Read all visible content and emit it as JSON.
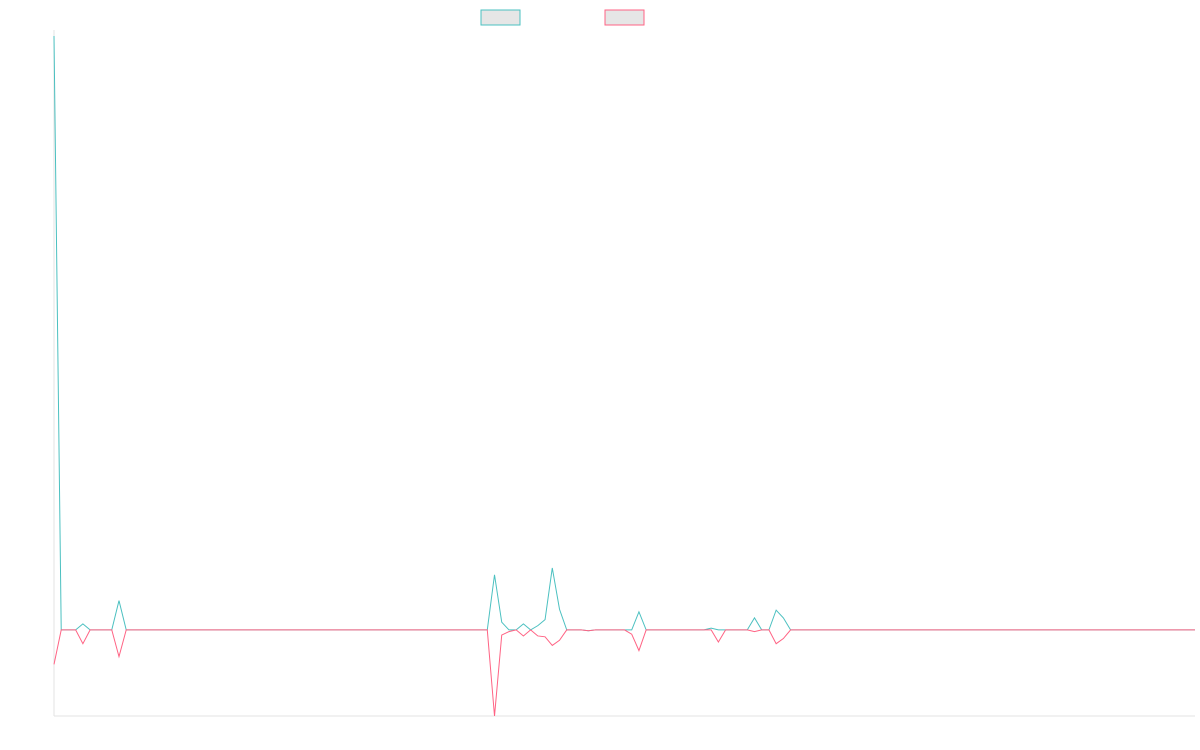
{
  "chart_data": {
    "type": "line",
    "title": "",
    "xlabel": "",
    "ylabel": "",
    "grid": false,
    "legend_position": "top-center",
    "x": [
      0,
      1,
      2,
      3,
      4,
      5,
      6,
      7,
      8,
      9,
      10,
      11,
      12,
      13,
      14,
      15,
      16,
      17,
      18,
      19,
      20,
      21,
      22,
      23,
      24,
      25,
      26,
      27,
      28,
      29,
      30,
      31,
      32,
      33,
      34,
      35,
      36,
      37,
      38,
      39,
      40,
      41,
      42,
      43,
      44,
      45,
      46,
      47,
      48,
      49,
      50,
      51,
      52,
      53,
      54,
      55,
      56,
      57,
      58,
      59,
      60,
      61,
      62,
      63,
      64,
      65,
      66,
      67,
      68,
      69,
      70,
      71,
      72,
      73,
      74,
      75,
      76,
      77,
      78,
      79,
      80,
      81,
      82,
      83,
      84,
      85,
      86,
      87,
      88,
      89,
      90,
      91,
      92,
      93,
      94,
      95,
      96,
      97,
      98,
      99,
      100,
      101,
      102,
      103,
      104,
      105,
      106,
      107,
      108,
      109,
      110,
      111,
      112,
      113,
      114,
      115,
      116,
      117,
      118,
      119,
      120,
      121,
      122,
      123,
      124,
      125,
      126,
      127,
      128,
      129,
      130,
      131,
      132,
      133,
      134,
      135,
      136,
      137,
      138,
      139,
      140,
      141,
      142,
      143,
      144,
      145,
      146,
      147,
      148,
      149,
      150,
      151,
      152,
      153,
      154,
      155,
      156,
      157,
      158
    ],
    "ylim": [
      -100,
      690
    ],
    "series": [
      {
        "color": "#4bc0c0",
        "values": [
          690,
          0,
          0,
          0,
          7,
          0,
          0,
          0,
          0,
          34,
          0,
          0,
          0,
          0,
          0,
          0,
          0,
          0,
          0,
          0,
          0,
          0,
          0,
          0,
          0,
          0,
          0,
          0,
          0,
          0,
          0,
          0,
          0,
          0,
          0,
          0,
          0,
          0,
          0,
          0,
          0,
          0,
          0,
          0,
          0,
          0,
          0,
          0,
          0,
          0,
          0,
          0,
          0,
          0,
          0,
          0,
          0,
          0,
          0,
          0,
          0,
          64,
          9,
          0,
          0,
          7,
          0,
          5,
          12,
          72,
          24,
          0,
          0,
          0,
          -1,
          0,
          0,
          0,
          0,
          0,
          0,
          21,
          0,
          0,
          0,
          0,
          0,
          0,
          0,
          0,
          0,
          2,
          0,
          0,
          0,
          0,
          0,
          14,
          0,
          0,
          23,
          14,
          0,
          0,
          0,
          0,
          0,
          0,
          0,
          0,
          0,
          0,
          0,
          0,
          0,
          0,
          0,
          0,
          0,
          0,
          0,
          0,
          0,
          0,
          0,
          0,
          0,
          0,
          0,
          0,
          0,
          0,
          0,
          0,
          0,
          0,
          0,
          0,
          0,
          0,
          0,
          0,
          0,
          0,
          0,
          0,
          0,
          0,
          0,
          0,
          0,
          0,
          0,
          0,
          0,
          0,
          0,
          0,
          0
        ]
      },
      {
        "color": "#ff6384",
        "values": [
          -40,
          0,
          0,
          0,
          -16,
          0,
          0,
          0,
          0,
          -31,
          0,
          0,
          0,
          0,
          0,
          0,
          0,
          0,
          0,
          0,
          0,
          0,
          0,
          0,
          0,
          0,
          0,
          0,
          0,
          0,
          0,
          0,
          0,
          0,
          0,
          0,
          0,
          0,
          0,
          0,
          0,
          0,
          0,
          0,
          0,
          0,
          0,
          0,
          0,
          0,
          0,
          0,
          0,
          0,
          0,
          0,
          0,
          0,
          0,
          0,
          0,
          -100,
          -6,
          -2,
          0,
          -7,
          0,
          -7,
          -8,
          -18,
          -12,
          0,
          0,
          0,
          -1,
          0,
          0,
          0,
          0,
          0,
          -5,
          -24,
          0,
          0,
          0,
          0,
          0,
          0,
          0,
          0,
          0,
          0,
          -14,
          0,
          0,
          0,
          0,
          -2,
          0,
          0,
          -16,
          -10,
          0,
          0,
          0,
          0,
          0,
          0,
          0,
          0,
          0,
          0,
          0,
          0,
          0,
          0,
          0,
          0,
          0,
          0,
          0,
          0,
          0,
          0,
          0,
          0,
          0,
          0,
          0,
          0,
          0,
          0,
          0,
          0,
          0,
          0,
          0,
          0,
          0,
          0,
          0,
          0,
          0,
          0,
          0,
          0,
          0,
          0,
          0,
          0,
          0,
          0,
          0,
          0,
          0,
          0,
          0,
          0,
          0
        ]
      }
    ]
  }
}
